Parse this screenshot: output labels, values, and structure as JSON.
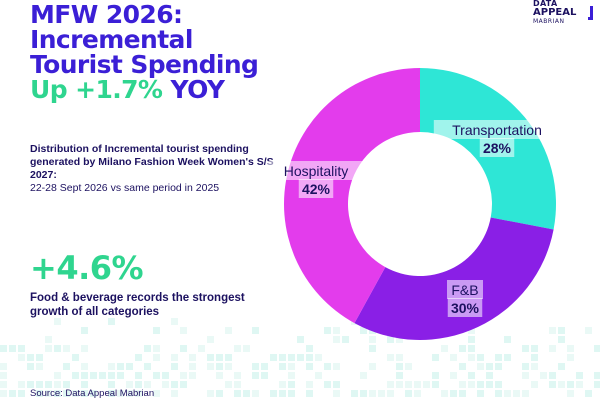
{
  "title": {
    "line1": "MFW 2026:",
    "line2": "Incremental",
    "line3": "Tourist Spending",
    "line4_accent": "Up +1.7%",
    "line4_rest": " YOY"
  },
  "logo": {
    "line1": "DATA",
    "line2": "APPEAL",
    "line3": "MABRIAN"
  },
  "description": {
    "bold": "Distribution of Incremental tourist spending generated by Milano Fashion Week Women's S/S 2027:",
    "normal": "22-28 Sept 2026 vs same period in 2025"
  },
  "highlight": {
    "value": "+4.6%",
    "caption": "Food & beverage records the strongest growth of all categories"
  },
  "source": "Source: Data Appeal Mabrian",
  "colors": {
    "primary": "#3b1fd6",
    "accent": "#2fd58f",
    "text": "#1c1160"
  },
  "chart_data": {
    "type": "pie",
    "donut": true,
    "categories": [
      "Transportation",
      "F&B",
      "Hospitality"
    ],
    "values": [
      28,
      30,
      42
    ],
    "value_labels": [
      "28%",
      "30%",
      "42%"
    ],
    "colors": [
      "#2ee6d6",
      "#8a1fe6",
      "#e33cec"
    ],
    "legend": "none"
  }
}
